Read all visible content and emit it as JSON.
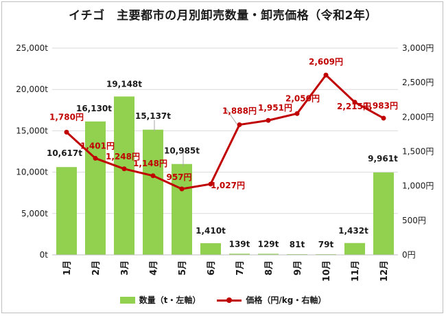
{
  "title": "イチゴ　主要都市の月別卸売数量・卸売価格（令和2年）",
  "colors": {
    "bar": "#92d050",
    "line": "#c00000",
    "bar_label": "#1a1a1a",
    "line_label": "#c00000",
    "grid": "#d9d9d9",
    "axis_text": "#1a1a1a"
  },
  "legend": {
    "bar_label": "数量（t・左軸）",
    "line_label": "価格（円/kg・右軸）"
  },
  "chart_data": {
    "type": "bar",
    "title": "イチゴ　主要都市の月別卸売数量・卸売価格（令和2年）",
    "categories": [
      "1月",
      "2月",
      "3月",
      "4月",
      "5月",
      "6月",
      "7月",
      "8月",
      "9月",
      "10月",
      "11月",
      "12月"
    ],
    "series": [
      {
        "name": "数量（t・左軸）",
        "type": "bar",
        "axis": "left",
        "values": [
          10617,
          16130,
          19148,
          15137,
          10985,
          1410,
          139,
          129,
          81,
          79,
          1432,
          9961
        ],
        "labels": [
          "10,617t",
          "16,130t",
          "19,148t",
          "15,137t",
          "10,985t",
          "1,410t",
          "139t",
          "129t",
          "81t",
          "79t",
          "1,432t",
          "9,961t"
        ]
      },
      {
        "name": "価格（円/kg・右軸）",
        "type": "line",
        "axis": "right",
        "values": [
          1780,
          1401,
          1248,
          1148,
          957,
          1027,
          1888,
          1951,
          2050,
          2609,
          2215,
          1983
        ],
        "labels": [
          "1,780円",
          "1,401円",
          "1,248円",
          "1,148円",
          "957円",
          "1,027円",
          "1,888円",
          "1,951円",
          "2,050円",
          "2,609円",
          "2,215円",
          "1,983円"
        ]
      }
    ],
    "y_left": {
      "min": 0,
      "max": 25000,
      "ticks": [
        0,
        5000,
        10000,
        15000,
        20000,
        25000
      ],
      "tick_labels": [
        "0t",
        "5,000t",
        "10,000t",
        "15,000t",
        "20,000t",
        "25,000t"
      ]
    },
    "y_right": {
      "min": 0,
      "max": 3000,
      "ticks": [
        0,
        500,
        1000,
        1500,
        2000,
        2500,
        3000
      ],
      "tick_labels": [
        "0円",
        "500円",
        "1,000円",
        "1,500円",
        "2,000円",
        "2,500円",
        "3,000円"
      ]
    },
    "grid": true,
    "legend_position": "bottom"
  }
}
